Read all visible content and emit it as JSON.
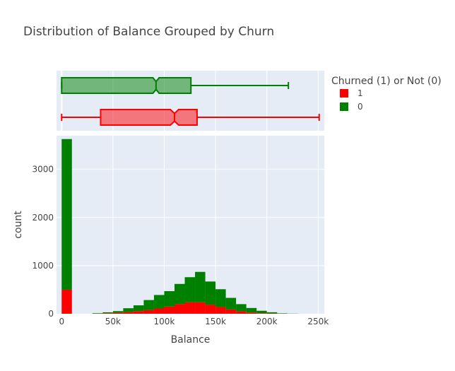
{
  "chart_data": {
    "type": "histogram",
    "title": "Distribution of Balance Grouped by Churn",
    "xlabel": "Balance",
    "ylabel": "count",
    "xlim": [
      -5000,
      256000
    ],
    "ylim": [
      0,
      3700
    ],
    "x_ticks": [
      0,
      50000,
      100000,
      150000,
      200000,
      250000
    ],
    "x_tick_labels": [
      "0",
      "50k",
      "100k",
      "150k",
      "200k",
      "250k"
    ],
    "y_ticks": [
      0,
      1000,
      2000,
      3000
    ],
    "y_tick_labels": [
      "0",
      "1000",
      "2000",
      "3000"
    ],
    "bin_width": 10000,
    "bin_starts": [
      0,
      10000,
      20000,
      30000,
      40000,
      50000,
      60000,
      70000,
      80000,
      90000,
      100000,
      110000,
      120000,
      130000,
      140000,
      150000,
      160000,
      170000,
      180000,
      190000,
      200000,
      210000,
      220000,
      230000,
      240000
    ],
    "stacked": true,
    "legend": {
      "title": "Churned (1) or Not (0)",
      "position": "right",
      "items": [
        {
          "name": "1",
          "color": "#ff0000"
        },
        {
          "name": "0",
          "color": "#008000"
        }
      ]
    },
    "series": [
      {
        "name": "1",
        "color": "#ff0000",
        "values": [
          500,
          0,
          0,
          3,
          10,
          20,
          35,
          55,
          75,
          110,
          150,
          200,
          240,
          240,
          190,
          140,
          90,
          50,
          25,
          12,
          6,
          2,
          0,
          0,
          0
        ],
        "box": {
          "min": 0,
          "q1": 38000,
          "median": 110000,
          "q3": 132000,
          "max": 251000,
          "notch_low": 106000,
          "notch_high": 114000
        }
      },
      {
        "name": "0",
        "color": "#008000",
        "values": [
          3130,
          0,
          0,
          10,
          20,
          35,
          80,
          120,
          210,
          280,
          320,
          420,
          520,
          630,
          480,
          370,
          240,
          150,
          95,
          50,
          25,
          8,
          3,
          0,
          0
        ],
        "box": {
          "min": 0,
          "q1": 0,
          "median": 92000,
          "q3": 126000,
          "max": 221000,
          "notch_low": 89000,
          "notch_high": 95000
        }
      }
    ]
  }
}
